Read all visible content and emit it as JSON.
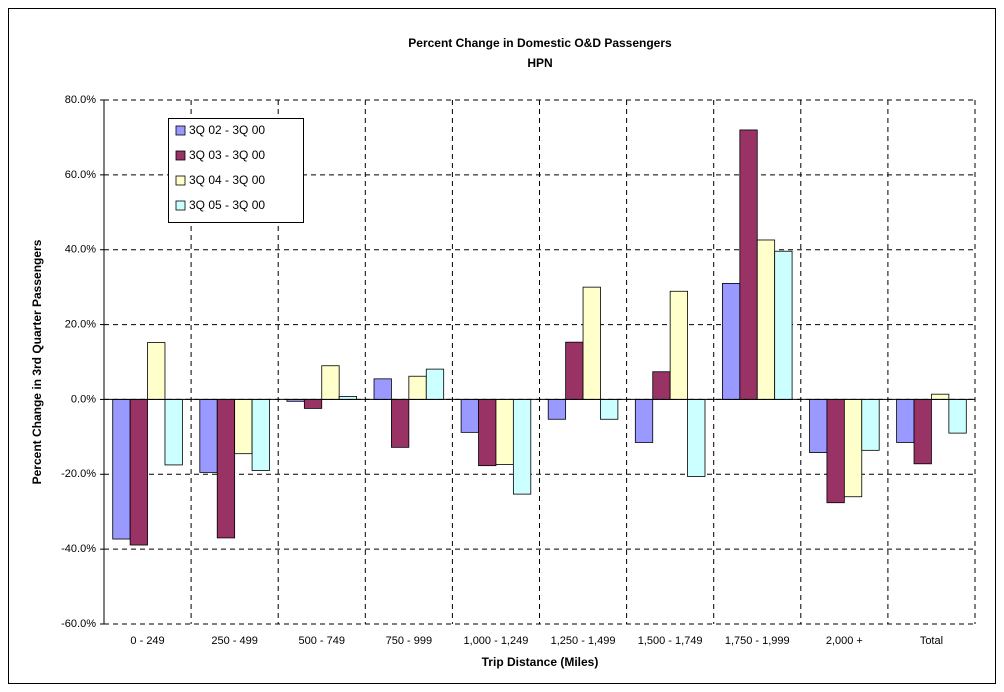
{
  "chart_data": {
    "type": "bar",
    "title": "Percent Change in Domestic O&D Passengers",
    "subtitle": "HPN",
    "x_label": "Trip Distance (Miles)",
    "y_label": "Percent Change in 3rd Quarter Passengers",
    "categories": [
      "0 - 249",
      "250 - 499",
      "500 - 749",
      "750 - 999",
      "1,000 - 1,249",
      "1,250 - 1,499",
      "1,500 - 1,749",
      "1,750 - 1,999",
      "2,000 +",
      "Total"
    ],
    "series": [
      {
        "name": "3Q 02 - 3Q 00",
        "color": "#9999ff",
        "values": [
          -37.3,
          -19.5,
          -0.5,
          5.5,
          -8.8,
          -5.3,
          -11.5,
          31,
          -14.2,
          -11.5
        ]
      },
      {
        "name": "3Q 03 - 3Q 00",
        "color": "#993366",
        "values": [
          -38.9,
          -37,
          -2.4,
          -12.8,
          -17.7,
          15.3,
          7.4,
          72,
          -27.6,
          -17.2
        ]
      },
      {
        "name": "3Q 04 - 3Q 00",
        "color": "#ffffcc",
        "values": [
          15.2,
          -14.5,
          9,
          6.2,
          -17.4,
          30,
          28.9,
          42.6,
          -26,
          1.4
        ]
      },
      {
        "name": "3Q 05 - 3Q 00",
        "color": "#ccffff",
        "values": [
          -17.5,
          -19,
          0.8,
          8.1,
          -25.3,
          -5.3,
          -20.6,
          39.6,
          -13.6,
          -9
        ]
      }
    ],
    "ylim": [
      -60,
      80
    ],
    "yticks": [
      {
        "value": -60,
        "label": "-60.0%"
      },
      {
        "value": -40,
        "label": "-40.0%"
      },
      {
        "value": -20,
        "label": "-20.0%"
      },
      {
        "value": 0,
        "label": "0.0%"
      },
      {
        "value": 20,
        "label": "20.0%"
      },
      {
        "value": 40,
        "label": "40.0%"
      },
      {
        "value": 60,
        "label": "60.0%"
      },
      {
        "value": 80,
        "label": "80.0%"
      }
    ],
    "grid": true
  }
}
